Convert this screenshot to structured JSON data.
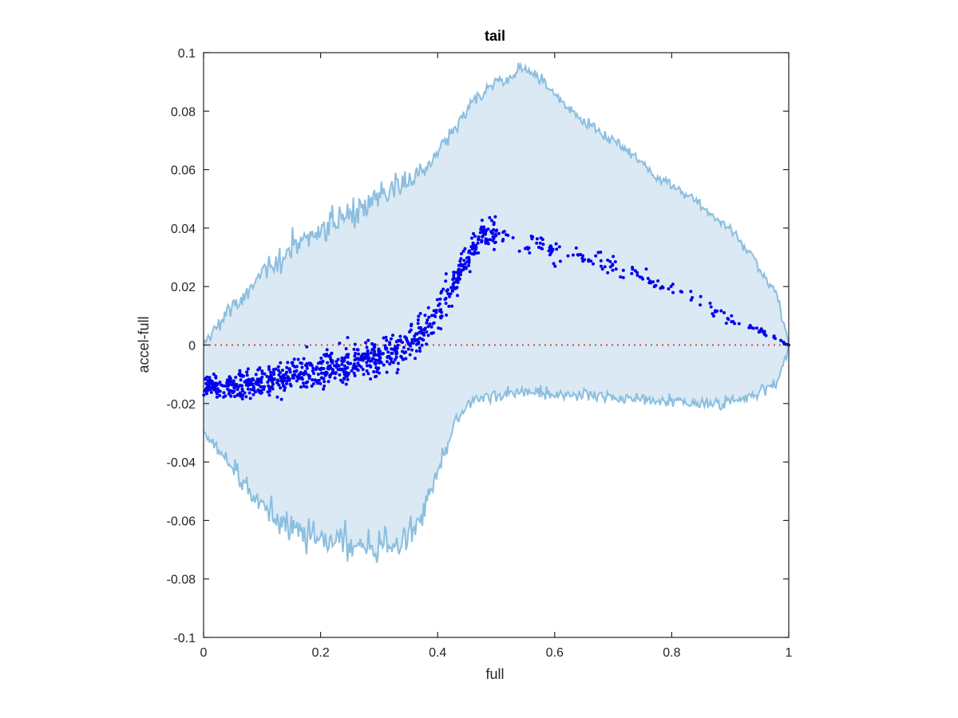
{
  "chart_data": {
    "type": "scatter",
    "title": "tail",
    "xlabel": "full",
    "ylabel": "accel-full",
    "xlim": [
      0,
      1
    ],
    "ylim": [
      -0.1,
      0.1
    ],
    "xticks": [
      0,
      0.2,
      0.4,
      0.6,
      0.8,
      1
    ],
    "xtick_labels": [
      "0",
      "0.2",
      "0.4",
      "0.6",
      "0.8",
      "1"
    ],
    "yticks": [
      -0.1,
      -0.08,
      -0.06,
      -0.04,
      -0.02,
      0,
      0.02,
      0.04,
      0.06,
      0.08,
      0.1
    ],
    "ytick_labels": [
      "-0.1",
      "-0.08",
      "-0.06",
      "-0.04",
      "-0.02",
      "0",
      "0.02",
      "0.04",
      "0.06",
      "0.08",
      "0.1"
    ],
    "grid": false,
    "reference_line": {
      "y": 0,
      "style": "dotted",
      "color": "#e8403a"
    },
    "colors": {
      "band_fill": "#dbe9f5",
      "band_edge": "#8bbedf",
      "points": "#0000ee",
      "axes": "#262626"
    },
    "band": {
      "x": [
        0.0,
        0.02,
        0.05,
        0.08,
        0.1,
        0.13,
        0.15,
        0.18,
        0.2,
        0.22,
        0.25,
        0.28,
        0.3,
        0.32,
        0.35,
        0.37,
        0.39,
        0.41,
        0.43,
        0.45,
        0.47,
        0.5,
        0.52,
        0.54,
        0.56,
        0.58,
        0.6,
        0.62,
        0.65,
        0.68,
        0.7,
        0.73,
        0.75,
        0.77,
        0.8,
        0.82,
        0.84,
        0.86,
        0.88,
        0.9,
        0.92,
        0.94,
        0.96,
        0.98,
        1.0
      ],
      "upper": [
        0.0,
        0.006,
        0.013,
        0.019,
        0.024,
        0.029,
        0.033,
        0.037,
        0.04,
        0.042,
        0.045,
        0.048,
        0.051,
        0.053,
        0.056,
        0.059,
        0.063,
        0.068,
        0.074,
        0.08,
        0.085,
        0.09,
        0.09,
        0.095,
        0.093,
        0.09,
        0.085,
        0.082,
        0.077,
        0.072,
        0.07,
        0.066,
        0.062,
        0.057,
        0.055,
        0.052,
        0.05,
        0.046,
        0.042,
        0.04,
        0.035,
        0.03,
        0.022,
        0.017,
        0.0
      ],
      "lower": [
        -0.03,
        -0.035,
        -0.042,
        -0.05,
        -0.055,
        -0.059,
        -0.062,
        -0.065,
        -0.066,
        -0.067,
        -0.068,
        -0.069,
        -0.069,
        -0.068,
        -0.066,
        -0.06,
        -0.05,
        -0.038,
        -0.027,
        -0.021,
        -0.018,
        -0.017,
        -0.016,
        -0.016,
        -0.016,
        -0.016,
        -0.017,
        -0.017,
        -0.017,
        -0.017,
        -0.018,
        -0.018,
        -0.018,
        -0.019,
        -0.019,
        -0.02,
        -0.02,
        -0.02,
        -0.02,
        -0.019,
        -0.018,
        -0.017,
        -0.015,
        -0.013,
        0.0
      ],
      "noise": [
        0.002,
        0.0045,
        0.005,
        0.006,
        0.0065,
        0.0075,
        0.008,
        0.0085,
        0.0085,
        0.009,
        0.009,
        0.009,
        0.009,
        0.009,
        0.008,
        0.0075,
        0.006,
        0.005,
        0.004,
        0.004,
        0.004,
        0.004,
        0.0035,
        0.003,
        0.003,
        0.003,
        0.003,
        0.003,
        0.003,
        0.003,
        0.003,
        0.003,
        0.003,
        0.003,
        0.003,
        0.003,
        0.003,
        0.003,
        0.003,
        0.003,
        0.003,
        0.003,
        0.003,
        0.003,
        0.002
      ]
    },
    "trend": {
      "x": [
        0.0,
        0.05,
        0.1,
        0.15,
        0.2,
        0.25,
        0.3,
        0.33,
        0.36,
        0.38,
        0.4,
        0.42,
        0.44,
        0.46,
        0.48,
        0.5,
        0.53,
        0.56,
        0.6,
        0.65,
        0.7,
        0.75,
        0.8,
        0.85,
        0.9,
        0.95,
        1.0
      ],
      "y": [
        -0.014,
        -0.014,
        -0.013,
        -0.011,
        -0.008,
        -0.006,
        -0.004,
        -0.002,
        0.002,
        0.006,
        0.011,
        0.018,
        0.026,
        0.033,
        0.038,
        0.039,
        0.037,
        0.035,
        0.032,
        0.03,
        0.027,
        0.023,
        0.019,
        0.014,
        0.009,
        0.005,
        0.0
      ],
      "spread": [
        0.003,
        0.004,
        0.0045,
        0.005,
        0.005,
        0.0055,
        0.0055,
        0.0055,
        0.006,
        0.006,
        0.006,
        0.005,
        0.005,
        0.0045,
        0.004,
        0.004,
        0.0035,
        0.0035,
        0.003,
        0.003,
        0.003,
        0.0025,
        0.002,
        0.002,
        0.0015,
        0.001,
        0.0005
      ]
    },
    "points": {
      "segments": [
        {
          "x_range": [
            0.0,
            0.36
          ],
          "count": 620
        },
        {
          "x_range": [
            0.36,
            0.5
          ],
          "count": 220
        },
        {
          "x_range": [
            0.5,
            0.7
          ],
          "count": 70
        },
        {
          "x_range": [
            0.7,
            1.0
          ],
          "count": 80
        }
      ],
      "end_point": [
        1.0,
        0.0
      ]
    }
  }
}
